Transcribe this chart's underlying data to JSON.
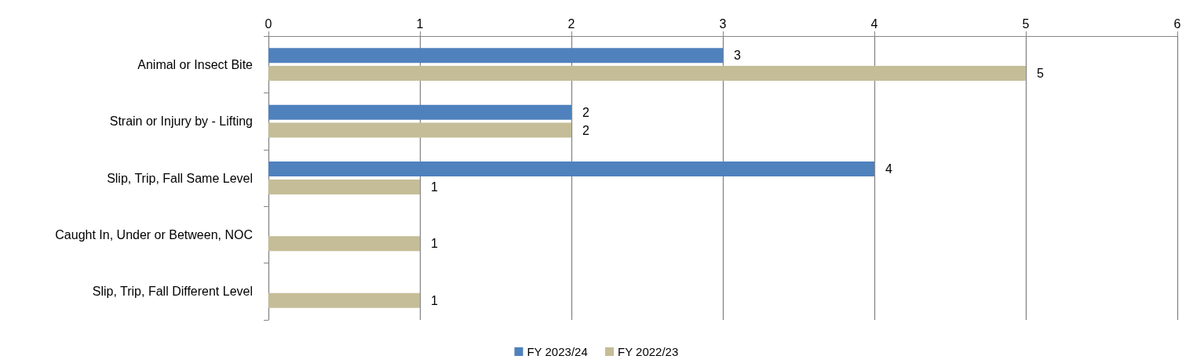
{
  "chart_data": {
    "type": "bar",
    "orientation": "horizontal",
    "categories": [
      "Animal or Insect Bite",
      "Strain or Injury by - Lifting",
      "Slip, Trip, Fall Same Level",
      "Caught In, Under or Between, NOC",
      "Slip, Trip, Fall Different Level"
    ],
    "series": [
      {
        "name": "FY 2023/24",
        "color": "#4f81bd",
        "values": [
          3,
          2,
          4,
          null,
          null
        ]
      },
      {
        "name": "FY 2022/23",
        "color": "#c4bd97",
        "values": [
          5,
          2,
          1,
          1,
          1
        ]
      }
    ],
    "xlim": [
      0,
      6
    ],
    "xticks": [
      0,
      1,
      2,
      3,
      4,
      5,
      6
    ],
    "grid": "x",
    "legend": "bottom",
    "data_labels": true
  }
}
